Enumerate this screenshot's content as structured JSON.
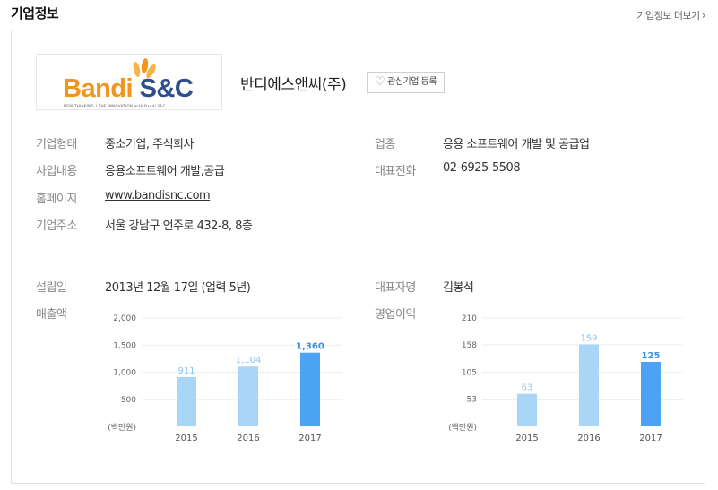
{
  "section": {
    "title": "기업정보",
    "more_label": "기업정보 더보기"
  },
  "company": {
    "name": "반디에스앤씨(주)",
    "favorite_label": "관심기업 등록",
    "logo": {
      "text_left": "Bandi",
      "text_right": "S&C",
      "tagline": "NEW THINKING ! THE INNOVATION with Bandi S&C"
    }
  },
  "info": {
    "type_label": "기업형태",
    "type_value": "중소기업, 주식회사",
    "industry_label": "업종",
    "industry_value": "응용 소프트웨어 개발 및 공급업",
    "business_label": "사업내용",
    "business_value": "응용소프트웨어 개발,공급",
    "phone_label": "대표전화",
    "phone_value": "02-6925-5508",
    "homepage_label": "홈페이지",
    "homepage_value": "www.bandisnc.com",
    "address_label": "기업주소",
    "address_value": "서울 강남구 언주로 432-8, 8층",
    "founded_label": "설립일",
    "founded_value": "2013년 12월 17일 (업력 5년)",
    "ceo_label": "대표자명",
    "ceo_value": "김봉석",
    "sales_label": "매출액",
    "profit_label": "영업이익"
  },
  "colors": {
    "bar_light": "#a9d5f7",
    "bar_highlight": "#4da3f3",
    "label_light": "#8cc5ee",
    "label_highlight": "#3a8fe0"
  },
  "chart_data": [
    {
      "type": "bar",
      "categories": [
        "2015",
        "2016",
        "2017"
      ],
      "values": [
        911,
        1104,
        1360
      ],
      "value_labels": [
        "911",
        "1,104",
        "1,360"
      ],
      "yticks": [
        2000,
        1500,
        1000,
        500
      ],
      "ytick_labels": [
        "2,000",
        "1,500",
        "1,000",
        "500"
      ],
      "ylim": [
        0,
        2000
      ],
      "unit_label": "(백만원)",
      "highlight_index": 2,
      "grid": true
    },
    {
      "type": "bar",
      "categories": [
        "2015",
        "2016",
        "2017"
      ],
      "values": [
        63,
        159,
        125
      ],
      "value_labels": [
        "63",
        "159",
        "125"
      ],
      "yticks": [
        210,
        158,
        105,
        53
      ],
      "ytick_labels": [
        "210",
        "158",
        "105",
        "53"
      ],
      "ylim": [
        0,
        210
      ],
      "unit_label": "(백만원)",
      "highlight_index": 2,
      "grid": true
    }
  ]
}
